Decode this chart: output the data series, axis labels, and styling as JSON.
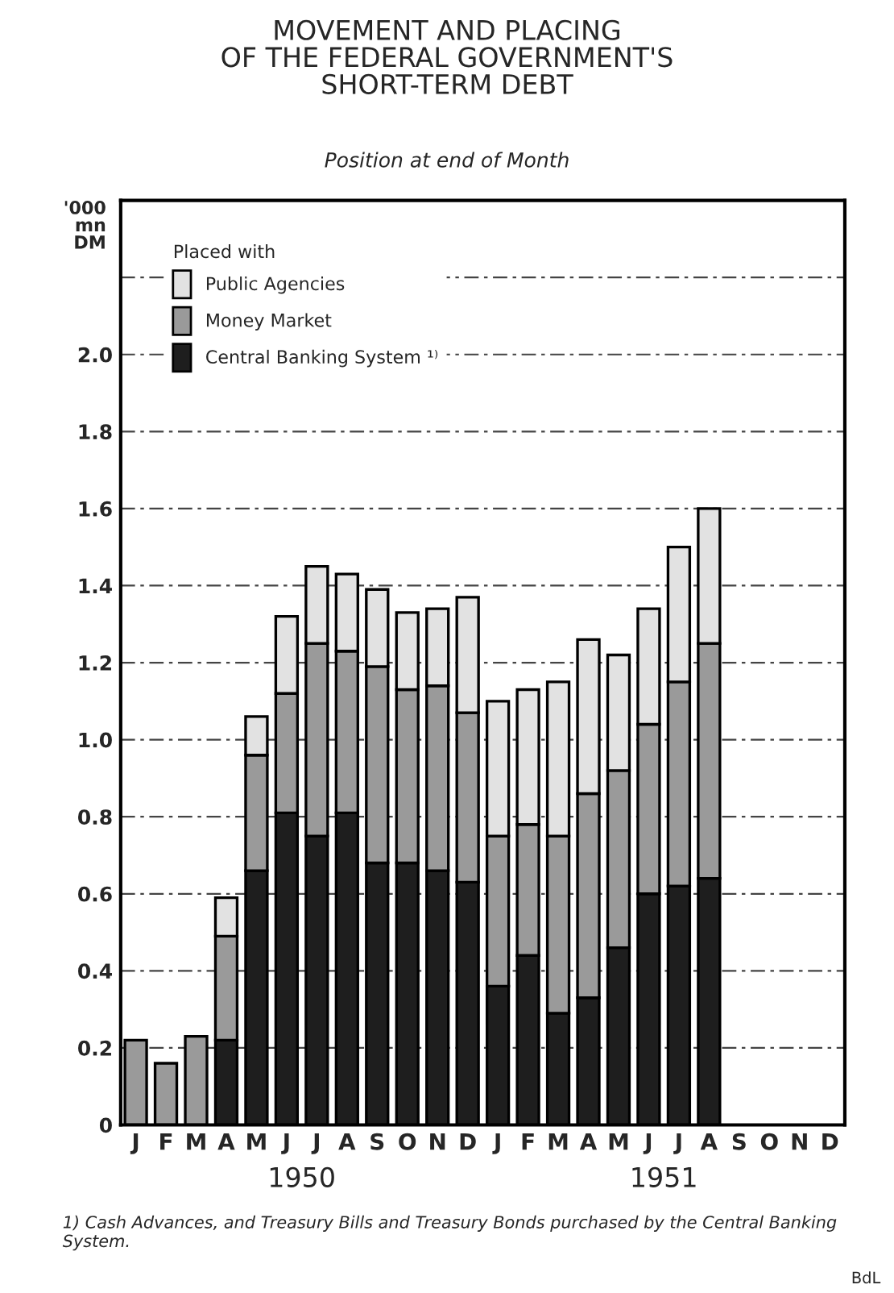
{
  "chart_data": {
    "type": "bar",
    "stacked": true,
    "title": "MOVEMENT AND PLACING\nOF THE FEDERAL GOVERNMENT'S\nSHORT-TERM DEBT",
    "subtitle": "Position at end of Month",
    "ylabel": "'000\nmn\nDM",
    "legend_title": "Placed with",
    "categories": [
      "J",
      "F",
      "M",
      "A",
      "M",
      "J",
      "J",
      "A",
      "S",
      "O",
      "N",
      "D",
      "J",
      "F",
      "M",
      "A",
      "M",
      "J",
      "J",
      "A",
      "S",
      "O",
      "N",
      "D"
    ],
    "series": [
      {
        "name": "Central Banking System ¹⁾",
        "color": "#1e1e1e",
        "values": [
          0,
          0,
          0,
          0.22,
          0.66,
          0.81,
          0.75,
          0.81,
          0.68,
          0.68,
          0.66,
          0.63,
          0.36,
          0.44,
          0.29,
          0.33,
          0.46,
          0.6,
          0.62,
          0.64,
          null,
          null,
          null,
          null
        ]
      },
      {
        "name": "Money Market",
        "color": "#9a9a9a",
        "values": [
          0.22,
          0.16,
          0.23,
          0.27,
          0.3,
          0.31,
          0.5,
          0.42,
          0.51,
          0.45,
          0.48,
          0.44,
          0.39,
          0.34,
          0.46,
          0.53,
          0.46,
          0.44,
          0.53,
          0.61,
          null,
          null,
          null,
          null
        ]
      },
      {
        "name": "Public Agencies",
        "color": "#e2e2e2",
        "values": [
          0,
          0,
          0,
          0.1,
          0.1,
          0.2,
          0.2,
          0.2,
          0.2,
          0.2,
          0.2,
          0.3,
          0.35,
          0.35,
          0.4,
          0.4,
          0.3,
          0.3,
          0.35,
          0.35,
          null,
          null,
          null,
          null
        ]
      }
    ],
    "ylim": [
      0,
      2.4
    ],
    "yticks": [
      0,
      0.2,
      0.4,
      0.6,
      0.8,
      {
        "value": 1,
        "label": "1.0"
      },
      1.2,
      1.4,
      1.6,
      1.8,
      {
        "value": 2,
        "label": "2.0"
      },
      {
        "value": 2.2,
        "label": null
      }
    ],
    "grid": "y",
    "legend": "top left",
    "annotations": [
      "1950",
      "1951",
      "1) Cash Advances, and Treasury Bills and Treasury Bonds purchased by the Central Banking System.",
      "BdL"
    ]
  }
}
